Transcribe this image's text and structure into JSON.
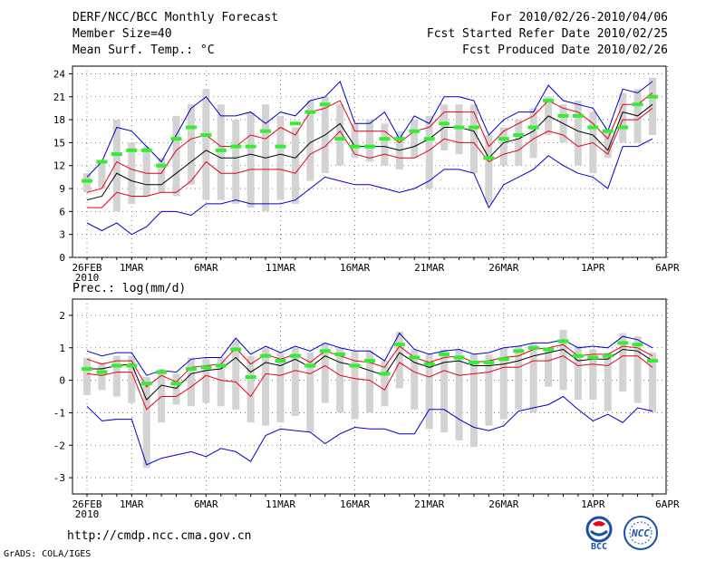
{
  "header": {
    "title": "DERF/NCC/BCC Monthly Forecast",
    "member_size": "Member Size=40",
    "variable1": "Mean Surf. Temp.: °C",
    "period": "For 2010/02/26-2010/04/06",
    "refer_date": "Fcst Started Refer Date 2010/02/25",
    "produced_date": "Fcst Produced Date 2010/02/26"
  },
  "footer": {
    "url": "http://cmdp.ncc.cma.gov.cn",
    "grads": "GrADS: COLA/IGES",
    "logo1_text": "BCC",
    "logo2_text": "NCC"
  },
  "colors": {
    "median": "#000000",
    "quartile": "#e8001c",
    "extreme": "#0000cc",
    "mean": "#33ee33",
    "spread": "#d3d3d3"
  },
  "chart_data": [
    {
      "type": "line",
      "title": "Mean Surf. Temp.: °C",
      "x_first_tick_label": "26FEB",
      "x_year_label": "2010",
      "x_tick_labels": [
        "26FEB",
        "1MAR",
        "6MAR",
        "11MAR",
        "16MAR",
        "21MAR",
        "26MAR",
        "1APR",
        "6APR"
      ],
      "x_tick_days": [
        0,
        3,
        8,
        13,
        18,
        23,
        28,
        34,
        39
      ],
      "ylim": [
        0,
        25
      ],
      "yticks": [
        0,
        3,
        6,
        9,
        12,
        15,
        18,
        21,
        24
      ],
      "grid": true,
      "series": [
        {
          "name": "max",
          "values": [
            4.5,
            3.5,
            4.5,
            3,
            4,
            6,
            6,
            5.5,
            7,
            7,
            7.5,
            7,
            7,
            7,
            7.5,
            9,
            10.5,
            10,
            9.5,
            9.5,
            9,
            8.5,
            9,
            10,
            11.5,
            11.5,
            11,
            6.5,
            9.5,
            10.5,
            11.5,
            13.3,
            12,
            11,
            10.5,
            9,
            14.5,
            14.5,
            15.5
          ]
        },
        {
          "name": "q_low",
          "values": [
            6.5,
            6.5,
            8.5,
            8,
            8,
            8.5,
            8.5,
            10,
            12.5,
            11,
            11,
            11.5,
            11.5,
            11.5,
            11,
            13.5,
            14.5,
            16.5,
            13.5,
            13,
            13.5,
            13,
            13,
            14,
            15.5,
            15,
            15,
            12.5,
            13.5,
            14,
            15.5,
            16.5,
            16,
            14.5,
            15,
            13.5,
            18,
            18,
            19.5
          ]
        },
        {
          "name": "median",
          "values": [
            7.5,
            8,
            11,
            10,
            9.5,
            9.5,
            11,
            12.5,
            14,
            13,
            13,
            13.5,
            13,
            13.5,
            13,
            15,
            16,
            17.5,
            14.5,
            14.5,
            14.5,
            14,
            14.5,
            15.5,
            17,
            17,
            16.5,
            13,
            15,
            15.5,
            16.5,
            18.5,
            17.5,
            16.5,
            16,
            14,
            19,
            18.5,
            20
          ]
        },
        {
          "name": "q_high",
          "values": [
            8.5,
            9,
            12.5,
            11.5,
            11,
            11,
            14,
            15.5,
            16,
            14.5,
            14.5,
            16,
            15.5,
            17,
            16,
            19,
            19.5,
            20.5,
            16.5,
            16.5,
            16.5,
            15,
            16.5,
            17,
            19,
            19,
            19,
            14.5,
            16.5,
            17.5,
            18.5,
            20.5,
            19.5,
            19,
            17.5,
            15.5,
            20,
            20,
            21.5
          ]
        },
        {
          "name": "min_upper_ext",
          "values": [
            10.5,
            12.5,
            17,
            16.5,
            14.5,
            12.5,
            16,
            19.5,
            21,
            18.5,
            18.5,
            19,
            17.5,
            19,
            18.5,
            20.5,
            21,
            23,
            17.5,
            17.5,
            19,
            15.5,
            18.5,
            17.5,
            21,
            21,
            20.5,
            16,
            18,
            19,
            19,
            22.5,
            20.5,
            20,
            19.5,
            16.5,
            22,
            21.5,
            23
          ]
        }
      ],
      "extremes_order_note": "",
      "means": [
        10,
        12.5,
        13.5,
        14,
        14,
        12,
        15.5,
        17,
        16,
        14,
        14.5,
        14.5,
        16.5,
        14.5,
        17.5,
        19,
        20,
        15.5,
        14.5,
        14.5,
        15.5,
        15.5,
        16.5,
        15.5,
        17.5,
        17,
        17,
        13,
        15.5,
        16,
        17,
        20.5,
        18.5,
        18.5,
        17,
        16.5,
        17,
        20,
        21
      ],
      "boxes": [
        [
          8.5,
          11
        ],
        [
          9,
          12.5
        ],
        [
          6,
          18
        ],
        [
          7,
          15
        ],
        [
          8,
          14.5
        ],
        [
          8.5,
          13
        ],
        [
          8,
          18.5
        ],
        [
          9.5,
          20
        ],
        [
          7.5,
          22
        ],
        [
          7.5,
          20
        ],
        [
          7,
          18
        ],
        [
          6.5,
          19
        ],
        [
          6,
          20
        ],
        [
          7.5,
          18.5
        ],
        [
          7,
          17
        ],
        [
          10,
          20.5
        ],
        [
          11,
          21
        ],
        [
          12,
          20
        ],
        [
          13,
          17.5
        ],
        [
          12.5,
          18
        ],
        [
          12,
          17.5
        ],
        [
          11.5,
          16.5
        ],
        [
          13,
          18
        ],
        [
          9,
          18.5
        ],
        [
          14,
          20
        ],
        [
          13.5,
          20
        ],
        [
          11,
          20
        ],
        [
          7,
          16
        ],
        [
          12,
          17
        ],
        [
          12,
          18
        ],
        [
          13,
          19.5
        ],
        [
          16,
          21
        ],
        [
          15,
          20
        ],
        [
          12,
          20.5
        ],
        [
          11,
          19
        ],
        [
          13,
          16.5
        ],
        [
          15,
          21.5
        ],
        [
          15,
          22
        ],
        [
          16,
          23.5
        ]
      ]
    },
    {
      "type": "line",
      "title": "Prec.: log(mm/d)",
      "x_first_tick_label": "26FEB",
      "x_year_label": "2010",
      "x_tick_labels": [
        "26FEB",
        "1MAR",
        "6MAR",
        "11MAR",
        "16MAR",
        "21MAR",
        "26MAR",
        "1APR",
        "6APR"
      ],
      "x_tick_days": [
        0,
        3,
        8,
        13,
        18,
        23,
        28,
        34,
        39
      ],
      "ylim": [
        -3.5,
        2.5
      ],
      "yticks": [
        -3,
        -2,
        -1,
        0,
        1,
        2
      ],
      "grid": true,
      "series": [
        {
          "name": "max",
          "values": [
            -0.8,
            -1.25,
            -1.2,
            -1.2,
            -2.6,
            -2.4,
            -2.3,
            -2.2,
            -2.35,
            -2.1,
            -2.2,
            -2.5,
            -1.7,
            -1.5,
            -1.55,
            -1.6,
            -1.95,
            -1.65,
            -1.45,
            -1.5,
            -1.5,
            -1.65,
            -1.65,
            -0.9,
            -0.9,
            -1.2,
            -1.45,
            -1.55,
            -1.4,
            -0.95,
            -0.85,
            -0.75,
            -0.5,
            -0.9,
            -1.25,
            -1.05,
            -1.3,
            -0.85,
            -0.95
          ]
        },
        {
          "name": "q_low",
          "values": [
            0.2,
            0.15,
            0.25,
            0.25,
            -0.9,
            -0.5,
            -0.5,
            -0.2,
            0.15,
            0.0,
            -0.05,
            -0.5,
            0.2,
            0.15,
            0.3,
            0.2,
            0.45,
            0.15,
            0.05,
            0.0,
            -0.3,
            0.55,
            0.25,
            0.1,
            0.3,
            0.15,
            0.2,
            0.25,
            0.4,
            0.4,
            0.6,
            0.6,
            0.75,
            0.45,
            0.5,
            0.45,
            0.75,
            0.75,
            0.4
          ]
        },
        {
          "name": "median",
          "values": [
            0.35,
            0.35,
            0.45,
            0.5,
            -0.6,
            -0.15,
            -0.25,
            0.2,
            0.3,
            0.35,
            0.7,
            0.25,
            0.55,
            0.45,
            0.65,
            0.4,
            0.75,
            0.55,
            0.45,
            0.3,
            0.15,
            0.85,
            0.55,
            0.4,
            0.55,
            0.6,
            0.45,
            0.45,
            0.5,
            0.6,
            0.75,
            0.85,
            0.95,
            0.6,
            0.65,
            0.65,
            0.95,
            0.9,
            0.6
          ]
        },
        {
          "name": "q_high",
          "values": [
            0.65,
            0.5,
            0.6,
            0.6,
            -0.2,
            0.15,
            -0.05,
            0.4,
            0.45,
            0.5,
            1.0,
            0.5,
            0.8,
            0.65,
            0.8,
            0.55,
            0.9,
            0.75,
            0.6,
            0.55,
            0.4,
            1.05,
            0.7,
            0.55,
            0.7,
            0.75,
            0.55,
            0.6,
            0.7,
            0.75,
            0.95,
            1.0,
            1.1,
            0.75,
            0.8,
            0.8,
            1.05,
            1.0,
            0.75
          ]
        },
        {
          "name": "min_upper_ext",
          "values": [
            0.9,
            0.75,
            0.85,
            0.85,
            0.15,
            0.3,
            0.25,
            0.65,
            0.7,
            0.7,
            1.3,
            0.8,
            1.05,
            0.85,
            1.05,
            0.9,
            1.15,
            1.0,
            0.9,
            0.9,
            0.6,
            1.45,
            0.95,
            0.8,
            0.9,
            0.95,
            0.8,
            0.85,
            1.0,
            1.05,
            1.15,
            1.15,
            1.25,
            1.0,
            1.05,
            1.0,
            1.35,
            1.25,
            1.0
          ]
        }
      ],
      "means": [
        0.35,
        0.25,
        0.45,
        0.45,
        -0.1,
        0.25,
        -0.1,
        0.35,
        0.4,
        0.45,
        0.95,
        0.1,
        0.75,
        0.6,
        0.75,
        0.45,
        0.9,
        0.8,
        0.45,
        0.6,
        0.2,
        1.1,
        0.7,
        0.5,
        0.8,
        0.7,
        0.55,
        0.55,
        0.65,
        0.9,
        1.0,
        0.95,
        1.2,
        0.75,
        0.7,
        0.75,
        1.15,
        1.1,
        0.6
      ],
      "boxes": [
        [
          -0.45,
          0.7
        ],
        [
          -0.3,
          0.55
        ],
        [
          -0.5,
          0.75
        ],
        [
          -0.7,
          0.75
        ],
        [
          -2.7,
          0.1
        ],
        [
          -1.3,
          0.35
        ],
        [
          -0.75,
          0.2
        ],
        [
          -0.8,
          0.7
        ],
        [
          -0.7,
          0.65
        ],
        [
          -0.8,
          0.7
        ],
        [
          -0.9,
          1.25
        ],
        [
          -1.3,
          0.75
        ],
        [
          -1.4,
          1.0
        ],
        [
          -1.3,
          0.85
        ],
        [
          -1.1,
          1.0
        ],
        [
          -1.6,
          0.85
        ],
        [
          -0.7,
          1.15
        ],
        [
          -1.0,
          1.0
        ],
        [
          -1.2,
          0.9
        ],
        [
          -1.0,
          0.9
        ],
        [
          -0.8,
          0.6
        ],
        [
          -0.25,
          1.5
        ],
        [
          -0.9,
          0.95
        ],
        [
          -1.5,
          0.8
        ],
        [
          -1.6,
          0.95
        ],
        [
          -1.85,
          0.95
        ],
        [
          -2.05,
          0.8
        ],
        [
          -1.4,
          0.8
        ],
        [
          -1.2,
          1.0
        ],
        [
          -0.9,
          1.05
        ],
        [
          -1.0,
          1.15
        ],
        [
          -0.2,
          1.0
        ],
        [
          -0.3,
          1.55
        ],
        [
          -0.6,
          1.05
        ],
        [
          -0.6,
          0.95
        ],
        [
          -0.95,
          0.85
        ],
        [
          -0.35,
          1.45
        ],
        [
          -0.7,
          1.35
        ],
        [
          -1.0,
          0.85
        ]
      ]
    }
  ]
}
